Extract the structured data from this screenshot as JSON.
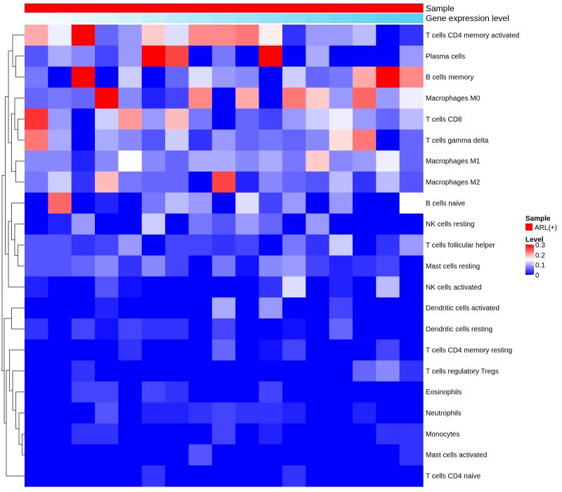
{
  "chart_data": {
    "type": "heatmap",
    "annotation_tracks": [
      {
        "name": "Sample",
        "value": "ARL(+)",
        "color": "#ff0000"
      },
      {
        "name": "Gene expression level",
        "gradient": [
          "#ffffff",
          "#58d0f5"
        ]
      }
    ],
    "columns": 17,
    "rows": [
      "T cells CD4 memory activated",
      "Plasma cells",
      "B cells memory",
      "Macrophages M0",
      "T cells CD8",
      "T cells gamma delta",
      "Macrophages M1",
      "Macrophages M2",
      "B cells naive",
      "NK cells resting",
      "T cells follicular helper",
      "Mast cells resting",
      "NK cells activated",
      "Dendritic cells activated",
      "Dendritic cells resting",
      "T cells CD4 memory resting",
      "T cells regulatory  Tregs",
      "Eosinophils",
      "Neutrophils",
      "Monocytes",
      "Mast cells activated",
      "T cells CD4 naive"
    ],
    "values": [
      [
        0.2,
        0.14,
        0.3,
        0.06,
        0.09,
        0.18,
        0.13,
        0.22,
        0.22,
        0.23,
        0.16,
        0.03,
        0.09,
        0.09,
        0.11,
        0.0,
        0.03
      ],
      [
        0.05,
        0.1,
        0.08,
        0.04,
        0.09,
        0.3,
        0.26,
        0.0,
        0.07,
        0.0,
        0.3,
        0.0,
        0.1,
        0.0,
        0.0,
        0.0,
        0.09
      ],
      [
        0.07,
        0.0,
        0.3,
        0.0,
        0.12,
        0.0,
        0.06,
        0.13,
        0.09,
        0.08,
        0.0,
        0.12,
        0.06,
        0.07,
        0.2,
        0.3,
        0.22
      ],
      [
        0.06,
        0.07,
        0.06,
        0.3,
        0.08,
        0.02,
        0.04,
        0.22,
        0.0,
        0.2,
        0.0,
        0.23,
        0.18,
        0.09,
        0.24,
        0.09,
        0.14
      ],
      [
        0.27,
        0.09,
        0.0,
        0.12,
        0.21,
        0.09,
        0.19,
        0.07,
        0.0,
        0.06,
        0.04,
        0.09,
        0.12,
        0.14,
        0.09,
        0.06,
        0.11
      ],
      [
        0.23,
        0.1,
        0.0,
        0.1,
        0.08,
        0.05,
        0.12,
        0.03,
        0.09,
        0.06,
        0.07,
        0.06,
        0.08,
        0.17,
        0.23,
        0.0,
        0.06
      ],
      [
        0.08,
        0.08,
        0.02,
        0.08,
        0.15,
        0.08,
        0.06,
        0.1,
        0.1,
        0.08,
        0.1,
        0.07,
        0.18,
        0.08,
        0.09,
        0.14,
        0.06
      ],
      [
        0.07,
        0.12,
        0.03,
        0.19,
        0.07,
        0.06,
        0.06,
        0.0,
        0.26,
        0.02,
        0.08,
        0.06,
        0.05,
        0.11,
        0.03,
        0.11,
        0.05
      ],
      [
        0.0,
        0.24,
        0.0,
        0.02,
        0.0,
        0.07,
        0.11,
        0.09,
        0.0,
        0.13,
        0.04,
        0.09,
        0.0,
        0.09,
        0.0,
        0.0,
        0.15
      ],
      [
        0.0,
        0.02,
        0.09,
        0.0,
        0.0,
        0.12,
        0.0,
        0.07,
        0.05,
        0.09,
        0.06,
        0.0,
        0.09,
        0.0,
        0.0,
        0.0,
        0.0
      ],
      [
        0.05,
        0.05,
        0.03,
        0.04,
        0.09,
        0.0,
        0.04,
        0.04,
        0.03,
        0.04,
        0.0,
        0.07,
        0.03,
        0.12,
        0.0,
        0.03,
        0.09
      ],
      [
        0.05,
        0.05,
        0.06,
        0.08,
        0.03,
        0.08,
        0.04,
        0.0,
        0.07,
        0.01,
        0.08,
        0.09,
        0.04,
        0.02,
        0.03,
        0.04,
        0.0
      ],
      [
        0.02,
        0.0,
        0.0,
        0.05,
        0.01,
        0.0,
        0.0,
        0.0,
        0.0,
        0.0,
        0.03,
        0.13,
        0.0,
        0.02,
        0.0,
        0.11,
        0.0
      ],
      [
        0.0,
        0.0,
        0.0,
        0.02,
        0.0,
        0.0,
        0.0,
        0.0,
        0.1,
        0.0,
        0.09,
        0.0,
        0.0,
        0.04,
        0.0,
        0.0,
        0.0
      ],
      [
        0.03,
        0.0,
        0.04,
        0.01,
        0.04,
        0.03,
        0.03,
        0.0,
        0.04,
        0.0,
        0.0,
        0.01,
        0.0,
        0.06,
        0.0,
        0.0,
        0.0
      ],
      [
        0.0,
        0.0,
        0.0,
        0.0,
        0.03,
        0.0,
        0.0,
        0.0,
        0.06,
        0.0,
        0.01,
        0.04,
        0.0,
        0.0,
        0.0,
        0.04,
        0.0
      ],
      [
        0.0,
        0.0,
        0.03,
        0.0,
        0.0,
        0.0,
        0.0,
        0.0,
        0.0,
        0.0,
        0.0,
        0.0,
        0.0,
        0.0,
        0.06,
        0.08,
        0.03
      ],
      [
        0.0,
        0.0,
        0.04,
        0.04,
        0.0,
        0.04,
        0.03,
        0.0,
        0.0,
        0.0,
        0.04,
        0.0,
        0.0,
        0.0,
        0.0,
        0.0,
        0.0
      ],
      [
        0.0,
        0.0,
        0.0,
        0.05,
        0.0,
        0.02,
        0.02,
        0.03,
        0.04,
        0.03,
        0.03,
        0.02,
        0.0,
        0.0,
        0.02,
        0.0,
        0.0
      ],
      [
        0.0,
        0.0,
        0.03,
        0.03,
        0.0,
        0.0,
        0.0,
        0.0,
        0.04,
        0.0,
        0.02,
        0.0,
        0.0,
        0.0,
        0.0,
        0.03,
        0.03
      ],
      [
        0.0,
        0.0,
        0.0,
        0.0,
        0.0,
        0.0,
        0.0,
        0.05,
        0.0,
        0.0,
        0.0,
        0.0,
        0.0,
        0.0,
        0.0,
        0.0,
        0.03
      ],
      [
        0.0,
        0.0,
        0.0,
        0.0,
        0.0,
        0.03,
        0.0,
        0.0,
        0.0,
        0.0,
        0.0,
        0.03,
        0.0,
        0.0,
        0.0,
        0.0,
        0.0
      ]
    ],
    "gene_expression_track": [
      0.05,
      0.1,
      0.16,
      0.22,
      0.28,
      0.34,
      0.4,
      0.46,
      0.52,
      0.58,
      0.64,
      0.7,
      0.76,
      0.82,
      0.88,
      0.94,
      1.0
    ],
    "color_scale": {
      "min": 0,
      "mid": 0.15,
      "max": 0.3,
      "colors": [
        "#0000ff",
        "#ffffff",
        "#ff0000"
      ]
    },
    "legend": {
      "sample_title": "Sample",
      "sample_item": "ARL(+)",
      "level_title": "Level",
      "ticks": [
        "0.3",
        "0.2",
        "0.1",
        "0"
      ],
      "tick_values": [
        0.3,
        0.2,
        0.1,
        0
      ]
    },
    "row_dendrogram": true,
    "column_dendrogram": false
  }
}
